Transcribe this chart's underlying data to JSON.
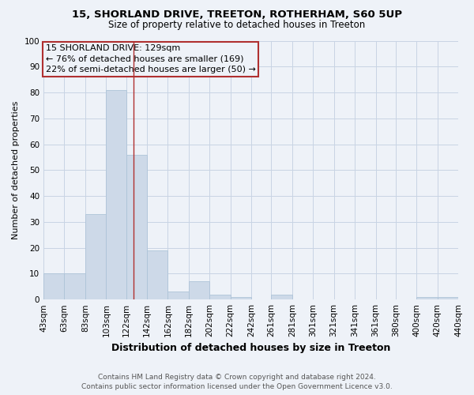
{
  "title_line1": "15, SHORLAND DRIVE, TREETON, ROTHERHAM, S60 5UP",
  "title_line2": "Size of property relative to detached houses in Treeton",
  "xlabel": "Distribution of detached houses by size in Treeton",
  "ylabel": "Number of detached properties",
  "footer_line1": "Contains HM Land Registry data © Crown copyright and database right 2024.",
  "footer_line2": "Contains public sector information licensed under the Open Government Licence v3.0.",
  "bar_edges": [
    43,
    63,
    83,
    103,
    122,
    142,
    162,
    182,
    202,
    222,
    242,
    261,
    281,
    301,
    321,
    341,
    361,
    380,
    400,
    420,
    440
  ],
  "bar_heights": [
    10,
    10,
    33,
    81,
    56,
    19,
    3,
    7,
    2,
    1,
    0,
    2,
    0,
    0,
    0,
    0,
    0,
    0,
    1,
    1
  ],
  "bar_color": "#cdd9e8",
  "bar_edgecolor": "#aec4d8",
  "vline_x": 129,
  "vline_color": "#b03030",
  "annotation_text_line1": "15 SHORLAND DRIVE: 129sqm",
  "annotation_text_line2": "← 76% of detached houses are smaller (169)",
  "annotation_text_line3": "22% of semi-detached houses are larger (50) →",
  "annotation_box_edgecolor": "#b03030",
  "ylim": [
    0,
    100
  ],
  "yticks": [
    0,
    10,
    20,
    30,
    40,
    50,
    60,
    70,
    80,
    90,
    100
  ],
  "xtick_labels": [
    "43sqm",
    "63sqm",
    "83sqm",
    "103sqm",
    "122sqm",
    "142sqm",
    "162sqm",
    "182sqm",
    "202sqm",
    "222sqm",
    "242sqm",
    "261sqm",
    "281sqm",
    "301sqm",
    "321sqm",
    "341sqm",
    "361sqm",
    "380sqm",
    "400sqm",
    "420sqm",
    "440sqm"
  ],
  "grid_color": "#c8d4e4",
  "bg_color": "#eef2f8",
  "title_fontsize": 9.5,
  "subtitle_fontsize": 8.5,
  "ylabel_fontsize": 8,
  "xlabel_fontsize": 9,
  "tick_fontsize": 7.5,
  "footer_fontsize": 6.5,
  "annotation_fontsize": 8
}
